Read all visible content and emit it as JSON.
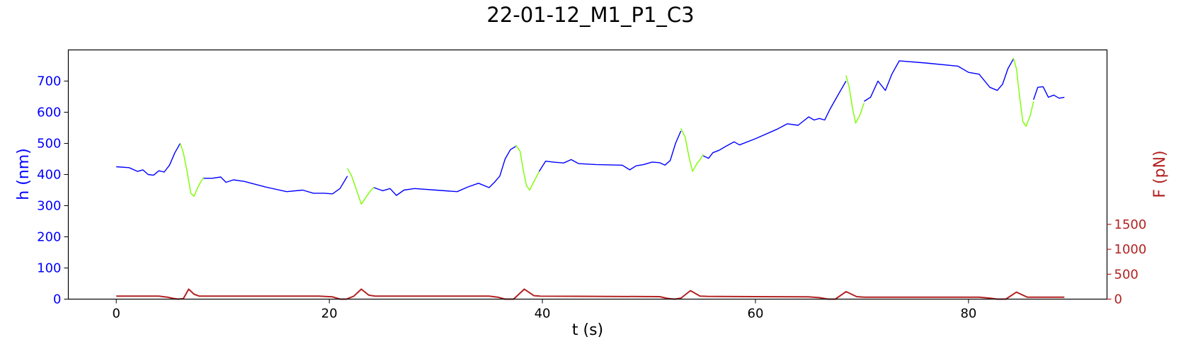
{
  "chart_data": {
    "type": "line",
    "title": "22-01-12_M1_P1_C3",
    "xlabel": "t (s)",
    "ylabel_left": "h (nm)",
    "ylabel_right": "F (pN)",
    "xlim": [
      -4.5,
      93
    ],
    "ylim_left": [
      0,
      800
    ],
    "ylim_right": [
      0,
      5000
    ],
    "xticks": [
      0,
      20,
      40,
      60,
      80
    ],
    "yticks_left": [
      0,
      100,
      200,
      300,
      400,
      500,
      600,
      700
    ],
    "yticks_right": [
      0,
      500,
      1000,
      1500
    ],
    "grid": false,
    "colors": {
      "approach": "#0000ff",
      "retract": "#7cfc00",
      "force": "#b22222",
      "left_axis": "#0000ff",
      "right_axis": "#b22222",
      "frame": "#000000"
    },
    "series": [
      {
        "axis": "left",
        "color": "#0000ff",
        "x": [
          0,
          1.2,
          2.0,
          2.5,
          3.0,
          3.5,
          4.0,
          4.5,
          5.0,
          5.5,
          6.0
        ],
        "y": [
          425,
          422,
          410,
          415,
          400,
          398,
          412,
          408,
          430,
          470,
          500
        ]
      },
      {
        "axis": "left",
        "color": "#7cfc00",
        "x": [
          6.0,
          6.3,
          6.7,
          7.0,
          7.3,
          7.6,
          7.9,
          8.2
        ],
        "y": [
          500,
          470,
          400,
          340,
          330,
          355,
          375,
          390
        ]
      },
      {
        "axis": "left",
        "color": "#0000ff",
        "x": [
          8.2,
          9.0,
          9.8,
          10.3,
          11.0,
          12.0,
          14.0,
          16.0,
          17.5,
          18.5,
          19.5,
          20.3,
          21.0,
          21.7
        ],
        "y": [
          388,
          388,
          392,
          375,
          383,
          378,
          360,
          345,
          350,
          340,
          340,
          338,
          355,
          395
        ]
      },
      {
        "axis": "left",
        "color": "#7cfc00",
        "x": [
          21.7,
          22.1,
          22.6,
          23.0,
          23.4,
          23.8,
          24.2
        ],
        "y": [
          420,
          395,
          345,
          305,
          325,
          345,
          360
        ]
      },
      {
        "axis": "left",
        "color": "#0000ff",
        "x": [
          24.2,
          25.0,
          25.7,
          26.3,
          27.0,
          28.0,
          30.0,
          32.0,
          33.0,
          34.0,
          35.0,
          35.5,
          36.0,
          36.5,
          37.0,
          37.5
        ],
        "y": [
          358,
          348,
          355,
          333,
          350,
          355,
          350,
          345,
          360,
          372,
          358,
          375,
          395,
          450,
          480,
          490
        ]
      },
      {
        "axis": "left",
        "color": "#7cfc00",
        "x": [
          37.5,
          37.9,
          38.2,
          38.5,
          38.8,
          39.1,
          39.4,
          39.7
        ],
        "y": [
          495,
          475,
          415,
          365,
          350,
          370,
          390,
          410
        ]
      },
      {
        "axis": "left",
        "color": "#0000ff",
        "x": [
          39.7,
          40.3,
          41.0,
          42.0,
          42.7,
          43.4,
          45.0,
          47.5,
          48.2,
          48.8,
          49.5,
          50.3,
          51.0,
          51.5,
          52.0,
          52.5,
          53.0
        ],
        "y": [
          410,
          443,
          440,
          437,
          448,
          435,
          432,
          430,
          415,
          428,
          432,
          440,
          438,
          430,
          445,
          500,
          540
        ]
      },
      {
        "axis": "left",
        "color": "#7cfc00",
        "x": [
          53.0,
          53.4,
          53.8,
          54.1,
          54.5,
          54.8,
          55.1
        ],
        "y": [
          548,
          520,
          450,
          410,
          435,
          448,
          465
        ]
      },
      {
        "axis": "left",
        "color": "#0000ff",
        "x": [
          55.1,
          55.6,
          56.0,
          56.6,
          57.2,
          58.0,
          58.5,
          60.0,
          62.0,
          63.0,
          64.0,
          65.0,
          65.5,
          66.0,
          66.5,
          67.0,
          67.5,
          68.0,
          68.5
        ],
        "y": [
          460,
          452,
          470,
          478,
          490,
          505,
          495,
          515,
          545,
          563,
          558,
          585,
          575,
          580,
          575,
          610,
          640,
          670,
          700
        ]
      },
      {
        "axis": "left",
        "color": "#7cfc00",
        "x": [
          68.5,
          68.8,
          69.1,
          69.4,
          69.8,
          70.2
        ],
        "y": [
          718,
          680,
          615,
          565,
          590,
          630
        ]
      },
      {
        "axis": "left",
        "color": "#0000ff",
        "x": [
          70.2,
          70.8,
          71.5,
          72.2,
          72.8,
          73.5,
          76.0,
          79.0,
          80.0,
          81.0,
          82.0,
          82.7,
          83.2,
          83.7,
          84.2
        ],
        "y": [
          635,
          648,
          700,
          670,
          722,
          765,
          758,
          748,
          728,
          722,
          680,
          670,
          690,
          740,
          770
        ]
      },
      {
        "axis": "left",
        "color": "#7cfc00",
        "x": [
          84.2,
          84.5,
          84.8,
          85.1,
          85.4,
          85.8,
          86.1
        ],
        "y": [
          775,
          740,
          650,
          570,
          555,
          590,
          635
        ]
      },
      {
        "axis": "left",
        "color": "#0000ff",
        "x": [
          86.1,
          86.5,
          87.0,
          87.5,
          88.0,
          88.5,
          89.0
        ],
        "y": [
          640,
          680,
          682,
          648,
          655,
          645,
          648
        ]
      },
      {
        "axis": "right",
        "color": "#b22222",
        "x": [
          0,
          2,
          4,
          4.8,
          5.3,
          5.8,
          6.3,
          6.8,
          7.3,
          7.8,
          8.3,
          10,
          15,
          19,
          20.3,
          21.0,
          21.6,
          22.3,
          23.0,
          23.7,
          24.3,
          26,
          30,
          35,
          35.8,
          36.5,
          37.3,
          38.3,
          39.2,
          39.8,
          45,
          51,
          51.7,
          52.4,
          53.0,
          53.9,
          54.8,
          55.5,
          60,
          65,
          66.0,
          66.8,
          67.5,
          68.5,
          69.5,
          70.2,
          75,
          81,
          82.0,
          82.7,
          83.5,
          84.5,
          85.5,
          86.2,
          89
        ],
        "y": [
          60,
          60,
          60,
          40,
          15,
          0,
          10,
          200,
          100,
          60,
          60,
          60,
          60,
          60,
          45,
          0,
          0,
          60,
          200,
          80,
          60,
          60,
          60,
          60,
          40,
          0,
          0,
          200,
          70,
          60,
          55,
          50,
          15,
          0,
          20,
          170,
          60,
          55,
          50,
          45,
          30,
          0,
          0,
          150,
          50,
          40,
          40,
          40,
          20,
          0,
          0,
          140,
          40,
          40,
          40
        ]
      }
    ]
  }
}
